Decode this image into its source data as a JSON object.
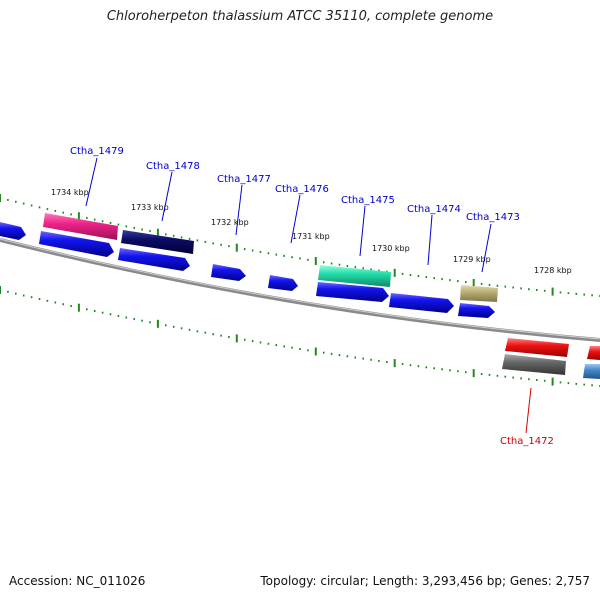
{
  "title": "Chloroherpeton thalassium ATCC 35110, complete genome",
  "footer": {
    "accession": "Accession: NC_011026",
    "topology": "Topology: circular; Length: 3,293,456 bp; Genes: 2,757"
  },
  "ruler_labels": [
    "1734 kbp",
    "1733 kbp",
    "1732 kbp",
    "1731 kbp",
    "1730 kbp",
    "1729 kbp",
    "1728 kbp"
  ],
  "gene_labels": [
    "Ctha_1479",
    "Ctha_1478",
    "Ctha_1477",
    "Ctha_1476",
    "Ctha_1475",
    "Ctha_1474",
    "Ctha_1473",
    "Ctha_1472"
  ],
  "colors": {
    "cds": "#1010ee",
    "highlight_pink": "#ee2288",
    "highlight_navy": "#0c0c66",
    "highlight_teal": "#22ddaa",
    "highlight_khaki": "#bbb077",
    "highlight_red": "#ee1111",
    "highlight_grey": "#666666",
    "highlight_steel": "#4488cc",
    "backbone": "#888888",
    "ticks": "#228822"
  }
}
